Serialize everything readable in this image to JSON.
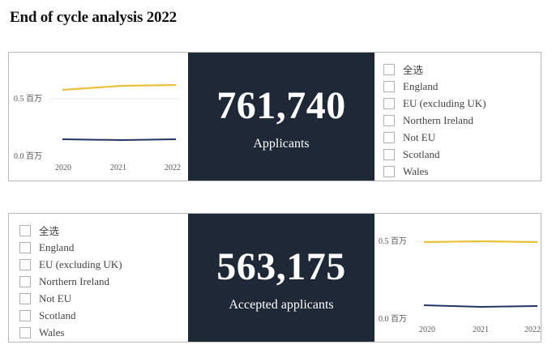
{
  "page": {
    "title": "End of cycle analysis 2022"
  },
  "applicants": {
    "value": "761,740",
    "label": "Applicants",
    "chart": {
      "y_tick_top": "0.5 百万",
      "y_tick_bottom": "0.0 百万",
      "x_ticks": [
        "2020",
        "2021",
        "2022"
      ]
    },
    "filter": {
      "items": [
        {
          "label": "全选"
        },
        {
          "label": "England"
        },
        {
          "label": "EU (excluding UK)"
        },
        {
          "label": "Northern Ireland"
        },
        {
          "label": "Not EU"
        },
        {
          "label": "Scotland"
        },
        {
          "label": "Wales"
        }
      ]
    }
  },
  "accepted": {
    "value": "563,175",
    "label": "Accepted applicants",
    "chart": {
      "y_tick_top": "0.5 百万",
      "y_tick_bottom": "0.0 百万",
      "x_ticks": [
        "2020",
        "2021",
        "2022"
      ]
    },
    "filter": {
      "items": [
        {
          "label": "全选"
        },
        {
          "label": "England"
        },
        {
          "label": "EU (excluding UK)"
        },
        {
          "label": "Northern Ireland"
        },
        {
          "label": "Not EU"
        },
        {
          "label": "Scotland"
        },
        {
          "label": "Wales"
        }
      ]
    }
  },
  "colors": {
    "series_top": "#e8c23a",
    "series_bottom": "#1f3564",
    "kpi_bg": "#1e2837"
  }
}
